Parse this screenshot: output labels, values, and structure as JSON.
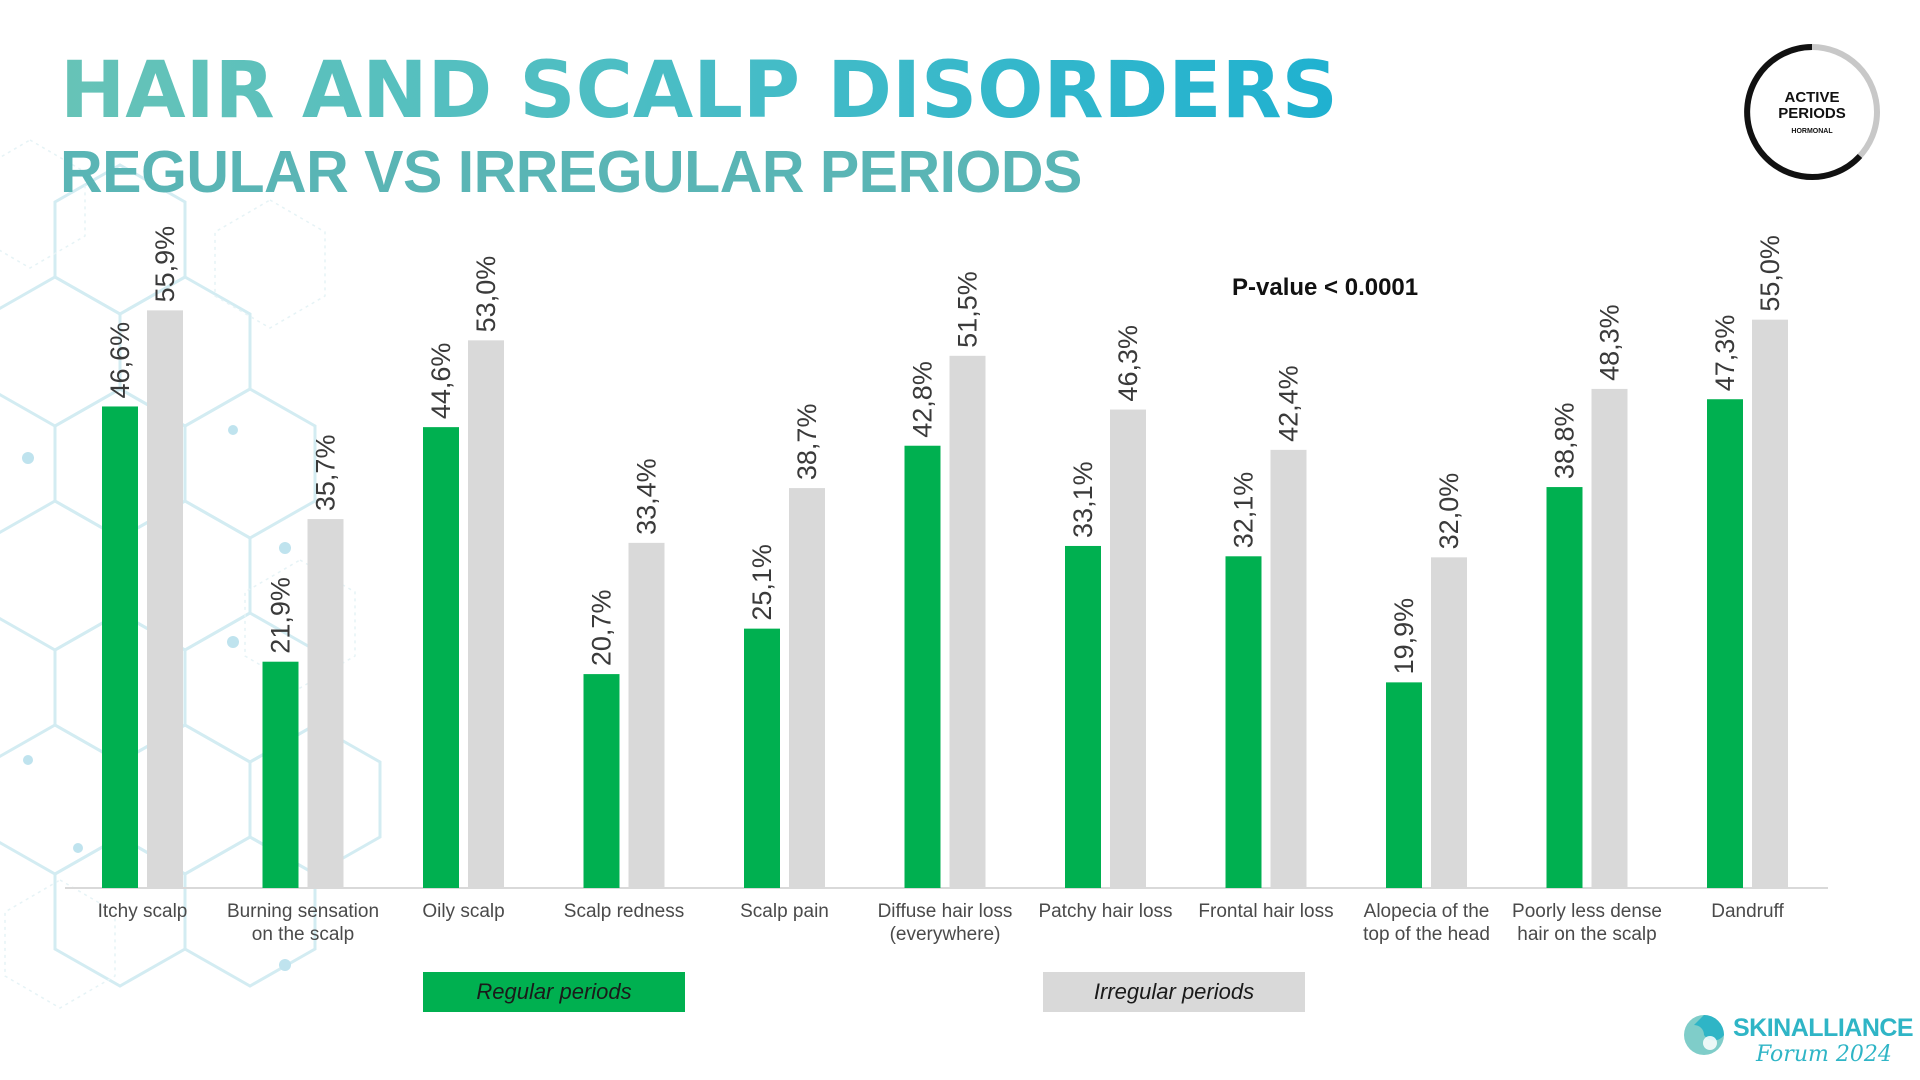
{
  "header": {
    "title": "HAIR AND SCALP DISORDERS",
    "subtitle": "REGULAR VS IRREGULAR PERIODS"
  },
  "badge": {
    "line1": "ACTIVE",
    "line2": "PERIODS",
    "line3": "HORMONAL"
  },
  "logo": {
    "name": "SKINALLIANCE",
    "tagline": "Forum 2024",
    "icon": "skinalliance-swirl-icon"
  },
  "colors": {
    "regular": "#00b050",
    "irregular": "#d9d9d9",
    "title_gradient_start": "#67c3b7",
    "title_gradient_end": "#1fb1d0",
    "subtitle": "#5ab5b5",
    "hexagon_lines": "#cde9f0"
  },
  "chart_data": {
    "type": "bar",
    "annotation": "P-value < 0.0001",
    "categories": [
      [
        "Itchy scalp"
      ],
      [
        "Burning sensation",
        "on the scalp"
      ],
      [
        "Oily scalp"
      ],
      [
        "Scalp redness"
      ],
      [
        "Scalp pain"
      ],
      [
        "Diffuse hair loss",
        "(everywhere)"
      ],
      [
        "Patchy hair loss"
      ],
      [
        "Frontal hair loss"
      ],
      [
        "Alopecia of the",
        "top of the head"
      ],
      [
        "Poorly less dense",
        "hair on the scalp"
      ],
      [
        "Dandruff"
      ]
    ],
    "series": [
      {
        "name": "Regular periods",
        "values": [
          46.6,
          21.9,
          44.6,
          20.7,
          25.1,
          42.8,
          33.1,
          32.1,
          19.9,
          38.8,
          47.3
        ],
        "labels": [
          "46,6%",
          "21,9%",
          "44,6%",
          "20,7%",
          "25,1%",
          "42,8%",
          "33,1%",
          "32,1%",
          "19,9%",
          "38,8%",
          "47,3%"
        ]
      },
      {
        "name": "Irregular periods",
        "values": [
          55.9,
          35.7,
          53.0,
          33.4,
          38.7,
          51.5,
          46.3,
          42.4,
          32.0,
          48.3,
          55.0
        ],
        "labels": [
          "55,9%",
          "35,7%",
          "53,0%",
          "33,4%",
          "38,7%",
          "51,5%",
          "46,3%",
          "42,4%",
          "32,0%",
          "48,3%",
          "55,0%"
        ]
      }
    ],
    "ylim": [
      0,
      60
    ],
    "grid": false,
    "legend_position": "bottom"
  }
}
